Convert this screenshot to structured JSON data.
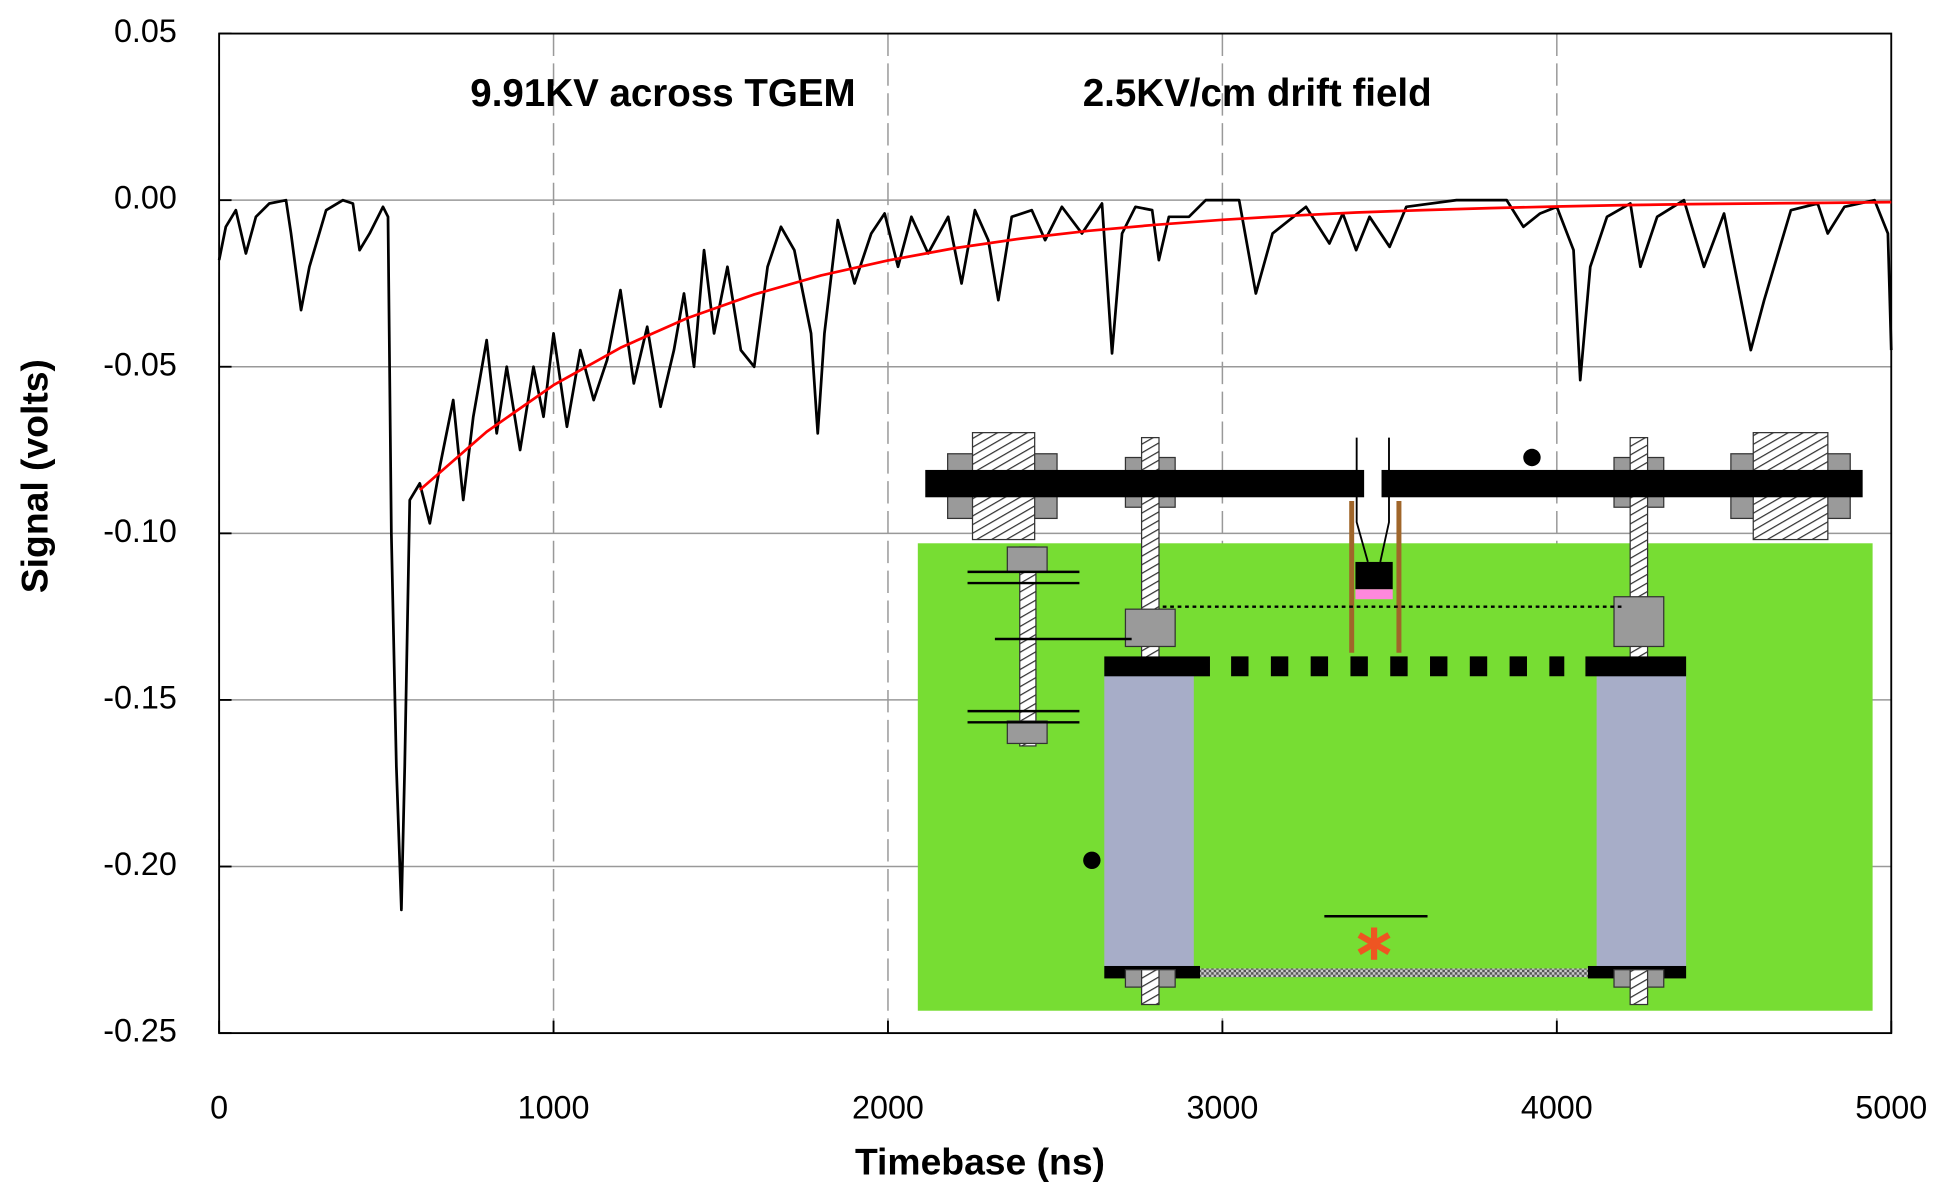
{
  "chart_data": {
    "type": "line",
    "xlabel": "Timebase (ns)",
    "ylabel": "Signal (volts)",
    "annotations": [
      "9.91KV across TGEM",
      "2.5KV/cm drift field"
    ],
    "xlim": [
      0,
      5000
    ],
    "xticks": [
      0,
      1000,
      2000,
      3000,
      4000,
      5000
    ],
    "ylim": [
      -0.25,
      0.05
    ],
    "yticks": [
      0.05,
      {
        "value": 0,
        "label": "0.00"
      },
      -0.05,
      {
        "value": -0.1,
        "label": "-0.10"
      },
      -0.15,
      {
        "value": -0.2,
        "label": "-0.20"
      },
      -0.25
    ],
    "grid": true,
    "series": [
      {
        "color": "#000000",
        "x": [
          0,
          20,
          50,
          80,
          110,
          150,
          200,
          215,
          245,
          270,
          320,
          370,
          400,
          420,
          450,
          490,
          505,
          515,
          530,
          545,
          555,
          570,
          600,
          630,
          660,
          700,
          730,
          760,
          800,
          830,
          860,
          900,
          940,
          970,
          1000,
          1040,
          1080,
          1120,
          1160,
          1200,
          1240,
          1280,
          1320,
          1360,
          1390,
          1420,
          1450,
          1480,
          1520,
          1560,
          1600,
          1640,
          1680,
          1720,
          1770,
          1790,
          1810,
          1850,
          1900,
          1950,
          1990,
          2030,
          2070,
          2120,
          2180,
          2220,
          2260,
          2300,
          2330,
          2370,
          2430,
          2470,
          2520,
          2580,
          2640,
          2670,
          2700,
          2740,
          2790,
          2810,
          2840,
          2900,
          2950,
          3050,
          3100,
          3150,
          3250,
          3320,
          3360,
          3400,
          3440,
          3500,
          3550,
          3700,
          3850,
          3900,
          3950,
          4000,
          4050,
          4070,
          4100,
          4150,
          4220,
          4250,
          4300,
          4380,
          4440,
          4500,
          4580,
          4620,
          4700,
          4780,
          4810,
          4860,
          4950,
          4990,
          5000
        ],
        "values": [
          -0.018,
          -0.008,
          -0.003,
          -0.016,
          -0.005,
          -0.001,
          0,
          -0.01,
          -0.033,
          -0.02,
          -0.003,
          0,
          -0.001,
          -0.015,
          -0.01,
          -0.002,
          -0.005,
          -0.1,
          -0.17,
          -0.213,
          -0.17,
          -0.09,
          -0.085,
          -0.097,
          -0.08,
          -0.06,
          -0.09,
          -0.065,
          -0.042,
          -0.07,
          -0.05,
          -0.075,
          -0.05,
          -0.065,
          -0.04,
          -0.068,
          -0.045,
          -0.06,
          -0.048,
          -0.027,
          -0.055,
          -0.038,
          -0.062,
          -0.045,
          -0.028,
          -0.05,
          -0.015,
          -0.04,
          -0.02,
          -0.045,
          -0.05,
          -0.02,
          -0.008,
          -0.015,
          -0.04,
          -0.07,
          -0.04,
          -0.006,
          -0.025,
          -0.01,
          -0.004,
          -0.02,
          -0.005,
          -0.016,
          -0.005,
          -0.025,
          -0.003,
          -0.012,
          -0.03,
          -0.005,
          -0.003,
          -0.012,
          -0.002,
          -0.01,
          -0.001,
          -0.046,
          -0.01,
          -0.002,
          -0.003,
          -0.018,
          -0.005,
          -0.005,
          0,
          0,
          -0.028,
          -0.01,
          -0.002,
          -0.013,
          -0.004,
          -0.015,
          -0.005,
          -0.014,
          -0.002,
          0,
          0,
          -0.008,
          -0.004,
          -0.002,
          -0.015,
          -0.054,
          -0.02,
          -0.005,
          -0.001,
          -0.02,
          -0.005,
          0,
          -0.02,
          -0.004,
          -0.045,
          -0.03,
          -0.003,
          -0.001,
          -0.01,
          -0.002,
          0,
          -0.01,
          -0.045
        ]
      },
      {
        "color": "#ff0000",
        "x": [
          600,
          800,
          1000,
          1200,
          1400,
          1600,
          1800,
          2000,
          2200,
          2400,
          2600,
          2800,
          3000,
          3200,
          3400,
          3600,
          3800,
          4000,
          4200,
          4400,
          4600,
          4800,
          5000
        ],
        "values": [
          -0.087,
          -0.0695,
          -0.0555,
          -0.0443,
          -0.0354,
          -0.0283,
          -0.0226,
          -0.0181,
          -0.0144,
          -0.0115,
          -0.0092,
          -0.0074,
          -0.0059,
          -0.0047,
          -0.0037,
          -0.003,
          -0.0024,
          -0.0019,
          -0.0015,
          -0.0012,
          -0.001,
          -0.0008,
          -0.0006
        ]
      }
    ]
  }
}
